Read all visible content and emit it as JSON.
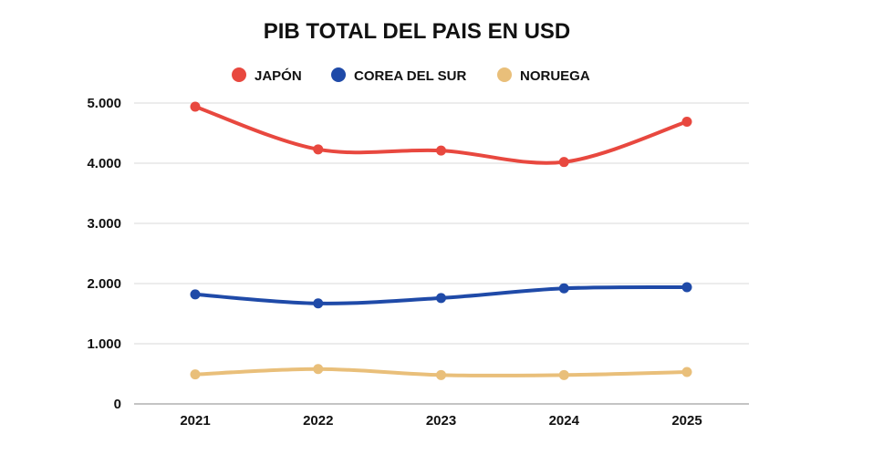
{
  "chart_data": {
    "type": "line",
    "title": "PIB TOTAL DEL PAIS EN USD",
    "xlabel": "",
    "ylabel": "",
    "categories": [
      "2021",
      "2022",
      "2023",
      "2024",
      "2025"
    ],
    "ylim": [
      0,
      5000
    ],
    "yticks": [
      0,
      1000,
      2000,
      3000,
      4000,
      5000
    ],
    "ytick_labels": [
      "0",
      "1.000",
      "2.000",
      "3.000",
      "4.000",
      "5.000"
    ],
    "grid": true,
    "legend_position": "top-center",
    "series": [
      {
        "name": "JAPÓN",
        "color": "#e8483f",
        "values": [
          4940,
          4230,
          4210,
          4020,
          4690
        ]
      },
      {
        "name": "COREA DEL SUR",
        "color": "#1f4aa8",
        "values": [
          1820,
          1670,
          1760,
          1920,
          1940
        ]
      },
      {
        "name": "NORUEGA",
        "color": "#e9bf7a",
        "values": [
          490,
          580,
          480,
          480,
          530
        ]
      }
    ]
  }
}
